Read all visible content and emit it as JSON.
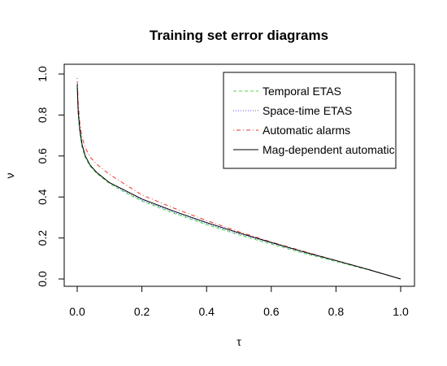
{
  "chart_data": {
    "type": "line",
    "title": "Training set error diagrams",
    "xlabel": "τ",
    "ylabel": "ν",
    "xlim": [
      0,
      1
    ],
    "ylim": [
      0,
      1
    ],
    "xticks": [
      "0.0",
      "0.2",
      "0.4",
      "0.6",
      "0.8",
      "1.0"
    ],
    "yticks": [
      "0.0",
      "0.2",
      "0.4",
      "0.6",
      "0.8",
      "1.0"
    ],
    "legend_position": "top-right",
    "grid": false,
    "series": [
      {
        "name": "Temporal ETAS",
        "color": "#44dd44",
        "dash": "dashed",
        "x": [
          0,
          0.003,
          0.008,
          0.015,
          0.025,
          0.04,
          0.06,
          0.08,
          0.1,
          0.15,
          0.2,
          0.3,
          0.4,
          0.5,
          0.6,
          0.7,
          0.8,
          0.9,
          1.0
        ],
        "y": [
          0.93,
          0.8,
          0.71,
          0.64,
          0.59,
          0.55,
          0.515,
          0.49,
          0.465,
          0.42,
          0.38,
          0.32,
          0.265,
          0.215,
          0.17,
          0.125,
          0.085,
          0.045,
          0.0
        ]
      },
      {
        "name": "Space-time ETAS",
        "color": "#5555ee",
        "dash": "dotted",
        "x": [
          0,
          0.003,
          0.008,
          0.015,
          0.025,
          0.04,
          0.06,
          0.08,
          0.1,
          0.15,
          0.2,
          0.3,
          0.4,
          0.5,
          0.6,
          0.7,
          0.8,
          0.9,
          1.0
        ],
        "y": [
          0.94,
          0.81,
          0.72,
          0.65,
          0.6,
          0.555,
          0.52,
          0.495,
          0.47,
          0.425,
          0.385,
          0.325,
          0.27,
          0.22,
          0.175,
          0.13,
          0.088,
          0.046,
          0.0
        ]
      },
      {
        "name": "Automatic alarms",
        "color": "#ee3333",
        "dash": "dotdash",
        "x": [
          0,
          0.003,
          0.008,
          0.015,
          0.025,
          0.04,
          0.06,
          0.08,
          0.1,
          0.15,
          0.2,
          0.3,
          0.4,
          0.5,
          0.6,
          0.7,
          0.8,
          0.9,
          1.0
        ],
        "y": [
          0.98,
          0.86,
          0.76,
          0.69,
          0.64,
          0.595,
          0.56,
          0.535,
          0.51,
          0.46,
          0.41,
          0.345,
          0.285,
          0.23,
          0.18,
          0.135,
          0.09,
          0.047,
          0.0
        ]
      },
      {
        "name": "Mag-dependent automatic",
        "color": "#000000",
        "dash": "solid",
        "x": [
          0,
          0.003,
          0.008,
          0.015,
          0.025,
          0.04,
          0.06,
          0.08,
          0.1,
          0.15,
          0.2,
          0.3,
          0.4,
          0.5,
          0.6,
          0.7,
          0.8,
          0.9,
          1.0
        ],
        "y": [
          0.95,
          0.82,
          0.73,
          0.655,
          0.6,
          0.555,
          0.52,
          0.495,
          0.47,
          0.43,
          0.39,
          0.33,
          0.275,
          0.225,
          0.178,
          0.132,
          0.09,
          0.046,
          0.0
        ]
      }
    ]
  }
}
